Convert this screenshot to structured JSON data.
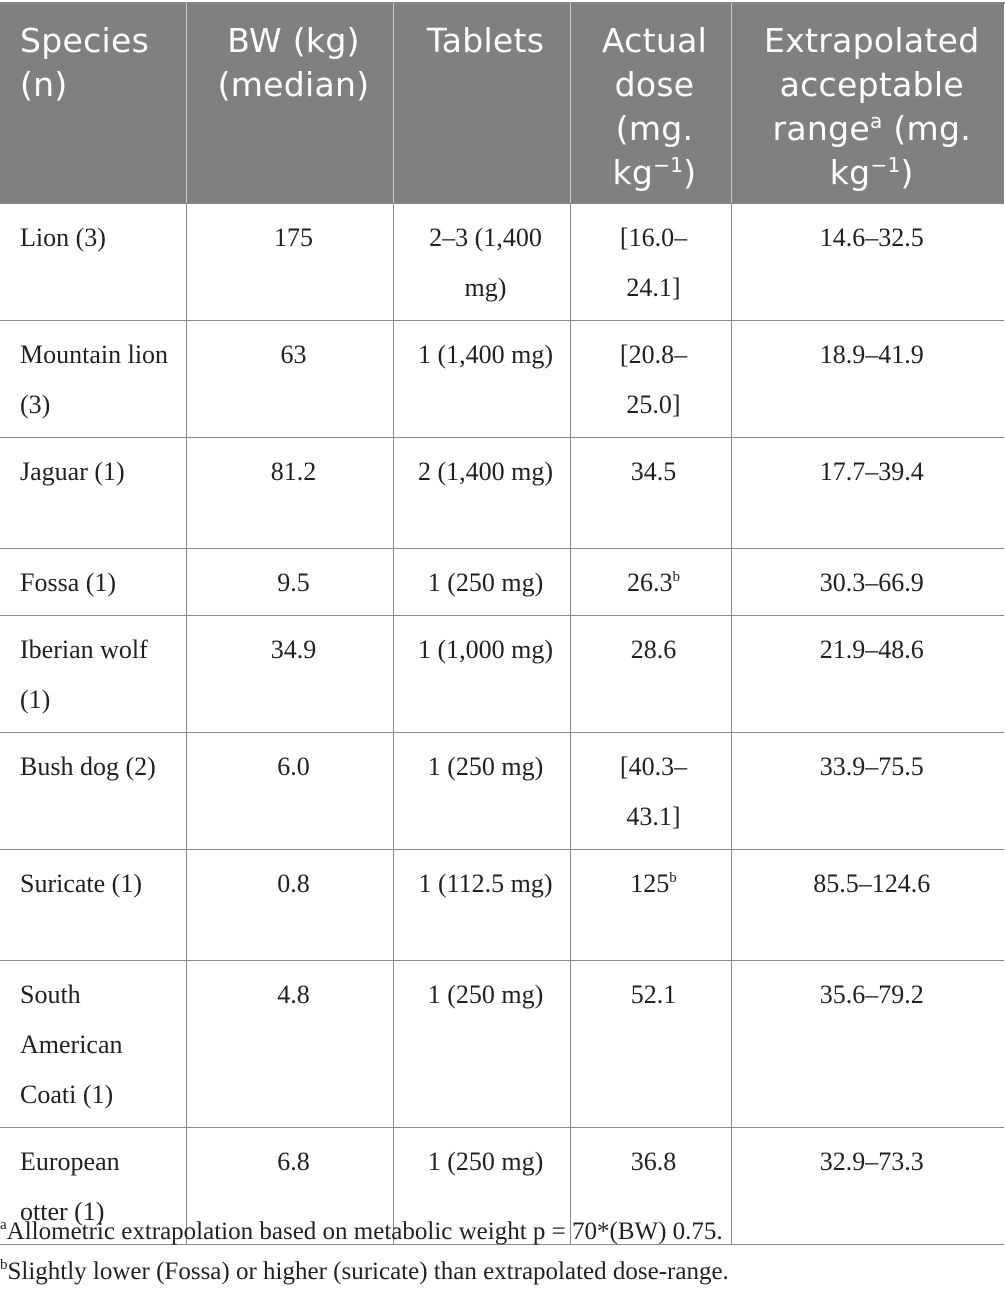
{
  "table": {
    "headers": [
      {
        "text": "Species (n)",
        "sup": "",
        "suffix": ""
      },
      {
        "text": "BW (kg) (median)",
        "sup": "",
        "suffix": ""
      },
      {
        "text": "Tablets",
        "sup": "",
        "suffix": ""
      },
      {
        "text": "Actual dose (mg. kg",
        "sup": "−1",
        "suffix": ")"
      },
      {
        "text": "Extrapolated acceptable range",
        "sup": "a",
        "suffix": " (mg. kg",
        "sup2": "−1",
        "suffix2": ")"
      }
    ],
    "rows": [
      {
        "species": "Lion (3)",
        "bw": "175",
        "tablets": "2–3 (1,400 mg)",
        "actual": "[16.0–24.1]",
        "actual_sup": "",
        "range": "14.6–32.5"
      },
      {
        "species": "Mountain lion (3)",
        "bw": "63",
        "tablets": "1 (1,400 mg)",
        "actual": "[20.8–25.0]",
        "actual_sup": "",
        "range": "18.9–41.9"
      },
      {
        "species": "Jaguar (1)",
        "bw": "81.2",
        "tablets": "2 (1,400 mg)",
        "actual": "34.5",
        "actual_sup": "",
        "range": "17.7–39.4"
      },
      {
        "species": "Fossa (1)",
        "bw": "9.5",
        "tablets": "1 (250 mg)",
        "actual": "26.3",
        "actual_sup": "b",
        "range": "30.3–66.9"
      },
      {
        "species": "Iberian wolf (1)",
        "bw": "34.9",
        "tablets": "1 (1,000 mg)",
        "actual": "28.6",
        "actual_sup": "",
        "range": "21.9–48.6"
      },
      {
        "species": "Bush dog (2)",
        "bw": "6.0",
        "tablets": "1 (250 mg)",
        "actual": "[40.3–43.1]",
        "actual_sup": "",
        "range": "33.9–75.5"
      },
      {
        "species": "Suricate (1)",
        "bw": "0.8",
        "tablets": "1 (112.5 mg)",
        "actual": "125",
        "actual_sup": "b",
        "range": "85.5–124.6"
      },
      {
        "species": "South American Coati (1)",
        "bw": "4.8",
        "tablets": "1 (250 mg)",
        "actual": "52.1",
        "actual_sup": "",
        "range": "35.6–79.2"
      },
      {
        "species": "European otter (1)",
        "bw": "6.8",
        "tablets": "1 (250 mg)",
        "actual": "36.8",
        "actual_sup": "",
        "range": "32.9–73.3"
      }
    ]
  },
  "footnotes": [
    {
      "marker": "a",
      "text": "Allometric extrapolation based on metabolic weight p = 70*(BW) 0.75."
    },
    {
      "marker": "b",
      "text": "Slightly lower (Fossa) or higher (suricate) than extrapolated dose-range."
    }
  ],
  "colors": {
    "header_bg": "#808080",
    "header_text": "#ffffff",
    "grid": "#8a8a8a",
    "body_text": "#231f20"
  }
}
